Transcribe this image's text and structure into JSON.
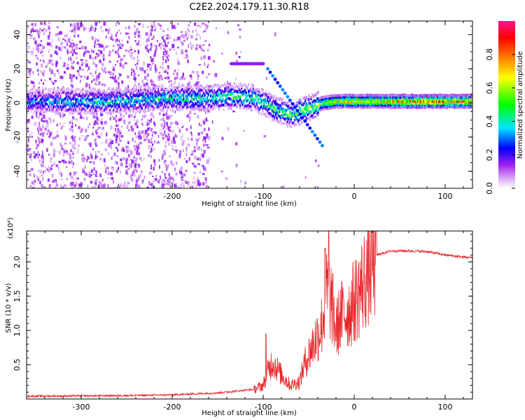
{
  "title": "C2E2.2024.179.11.30.R18",
  "chart_data": [
    {
      "type": "heatmap",
      "xlabel": "Height of straight line (km)",
      "ylabel": "Frequency (Hz)",
      "xlim": [
        -360,
        130
      ],
      "ylim": [
        -50,
        48
      ],
      "x_ticks": [
        -300,
        -200,
        -100,
        0,
        100
      ],
      "y_ticks": [
        -40,
        -20,
        0,
        20,
        40
      ],
      "colorbar": {
        "label": "Normalized spectral amplitude",
        "range": [
          0,
          1
        ],
        "ticks": [
          0.0,
          0.2,
          0.4,
          0.6,
          0.8
        ],
        "tick_labels": [
          "0.0",
          "0.2",
          "0.4",
          "0.6",
          "0.8"
        ],
        "colors": [
          "#ffffff",
          "#d9a8f5",
          "#a020f0",
          "#0000ff",
          "#00e5ff",
          "#00ff00",
          "#ffff00",
          "#ff8000",
          "#ff0000",
          "#ff1493"
        ]
      },
      "ridge": [
        {
          "x": -355,
          "freq": 1,
          "amp": 0.3
        },
        {
          "x": -320,
          "freq": 1,
          "amp": 0.35
        },
        {
          "x": -280,
          "freq": 1,
          "amp": 0.38
        },
        {
          "x": -240,
          "freq": 2,
          "amp": 0.38
        },
        {
          "x": -200,
          "freq": 3,
          "amp": 0.4
        },
        {
          "x": -160,
          "freq": 3,
          "amp": 0.42
        },
        {
          "x": -130,
          "freq": 4,
          "amp": 0.45
        },
        {
          "x": -110,
          "freq": 3,
          "amp": 0.45
        },
        {
          "x": -90,
          "freq": -3,
          "amp": 0.45
        },
        {
          "x": -70,
          "freq": -7,
          "amp": 0.5
        },
        {
          "x": -55,
          "freq": -4,
          "amp": 0.55
        },
        {
          "x": -45,
          "freq": -2,
          "amp": 0.55
        },
        {
          "x": -35,
          "freq": 0,
          "amp": 0.55
        },
        {
          "x": -20,
          "freq": 1,
          "amp": 0.65
        },
        {
          "x": 0,
          "freq": 1,
          "amp": 0.65
        },
        {
          "x": 20,
          "freq": 1,
          "amp": 0.65
        },
        {
          "x": 50,
          "freq": 1,
          "amp": 0.7
        },
        {
          "x": 80,
          "freq": 1,
          "amp": 0.8
        },
        {
          "x": 100,
          "freq": 1,
          "amp": 0.75
        },
        {
          "x": 128,
          "freq": 1,
          "amp": 0.75
        }
      ],
      "side_tones": [
        {
          "x_start": -135,
          "x_end": -100,
          "freq": 23
        },
        {
          "x_start": -95,
          "x_end": -35,
          "freq_start": 20,
          "freq_end": -25
        }
      ]
    },
    {
      "type": "line",
      "xlabel": "Height of straight line (km)",
      "ylabel": "SNR (10 * v/v)",
      "multiplier": "(x10⁴)",
      "xlim": [
        -360,
        130
      ],
      "ylim": [
        0,
        2.45
      ],
      "x_ticks": [
        -300,
        -200,
        -100,
        0,
        100
      ],
      "y_ticks": [
        0.5,
        1.0,
        1.5,
        2.0
      ],
      "color": "#e8262a",
      "envelope": [
        {
          "x": -360,
          "y": 0.04
        },
        {
          "x": -250,
          "y": 0.05
        },
        {
          "x": -200,
          "y": 0.06
        },
        {
          "x": -150,
          "y": 0.09
        },
        {
          "x": -110,
          "y": 0.14
        },
        {
          "x": -100,
          "y": 0.2
        },
        {
          "x": -95,
          "y": 0.4
        },
        {
          "x": -90,
          "y": 0.55
        },
        {
          "x": -80,
          "y": 0.35
        },
        {
          "x": -70,
          "y": 0.2
        },
        {
          "x": -60,
          "y": 0.25
        },
        {
          "x": -55,
          "y": 0.5
        },
        {
          "x": -45,
          "y": 0.8
        },
        {
          "x": -35,
          "y": 1.1
        },
        {
          "x": -30,
          "y": 1.6
        },
        {
          "x": -25,
          "y": 1.4
        },
        {
          "x": -20,
          "y": 1.0
        },
        {
          "x": -15,
          "y": 1.2
        },
        {
          "x": -5,
          "y": 1.3
        },
        {
          "x": 5,
          "y": 1.55
        },
        {
          "x": 15,
          "y": 1.85
        },
        {
          "x": 25,
          "y": 2.1
        },
        {
          "x": 40,
          "y": 2.16
        },
        {
          "x": 60,
          "y": 2.16
        },
        {
          "x": 80,
          "y": 2.15
        },
        {
          "x": 100,
          "y": 2.1
        },
        {
          "x": 120,
          "y": 2.07
        },
        {
          "x": 130,
          "y": 2.06
        }
      ],
      "peaks": [
        {
          "x": -97,
          "y": 0.95
        },
        {
          "x": -28,
          "y": 2.45
        },
        {
          "x": -32,
          "y": 2.2
        }
      ]
    }
  ]
}
